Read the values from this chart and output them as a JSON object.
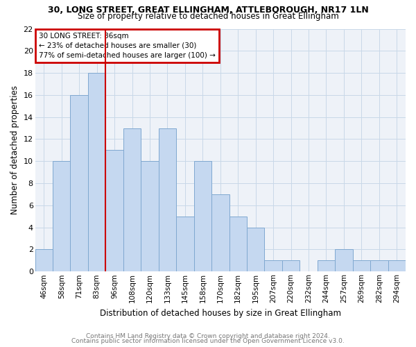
{
  "title1": "30, LONG STREET, GREAT ELLINGHAM, ATTLEBOROUGH, NR17 1LN",
  "title2": "Size of property relative to detached houses in Great Ellingham",
  "xlabel": "Distribution of detached houses by size in Great Ellingham",
  "ylabel": "Number of detached properties",
  "footer1": "Contains HM Land Registry data © Crown copyright and database right 2024.",
  "footer2": "Contains public sector information licensed under the Open Government Licence v3.0.",
  "categories": [
    "46sqm",
    "58sqm",
    "71sqm",
    "83sqm",
    "96sqm",
    "108sqm",
    "120sqm",
    "133sqm",
    "145sqm",
    "158sqm",
    "170sqm",
    "182sqm",
    "195sqm",
    "207sqm",
    "220sqm",
    "232sqm",
    "244sqm",
    "257sqm",
    "269sqm",
    "282sqm",
    "294sqm"
  ],
  "values": [
    2,
    10,
    16,
    18,
    11,
    13,
    10,
    13,
    5,
    10,
    7,
    5,
    4,
    1,
    1,
    0,
    1,
    2,
    1,
    1,
    1
  ],
  "bar_color": "#c5d8f0",
  "bar_edge_color": "#7fa8d0",
  "vline_index": 3,
  "vline_color": "#cc0000",
  "annotation_title": "30 LONG STREET: 86sqm",
  "annotation_line1": "← 23% of detached houses are smaller (30)",
  "annotation_line2": "77% of semi-detached houses are larger (100) →",
  "annotation_box_color": "#cc0000",
  "ylim": [
    0,
    22
  ],
  "yticks": [
    0,
    2,
    4,
    6,
    8,
    10,
    12,
    14,
    16,
    18,
    20,
    22
  ],
  "grid_color": "#c8d8e8",
  "background_color": "#eef2f8"
}
